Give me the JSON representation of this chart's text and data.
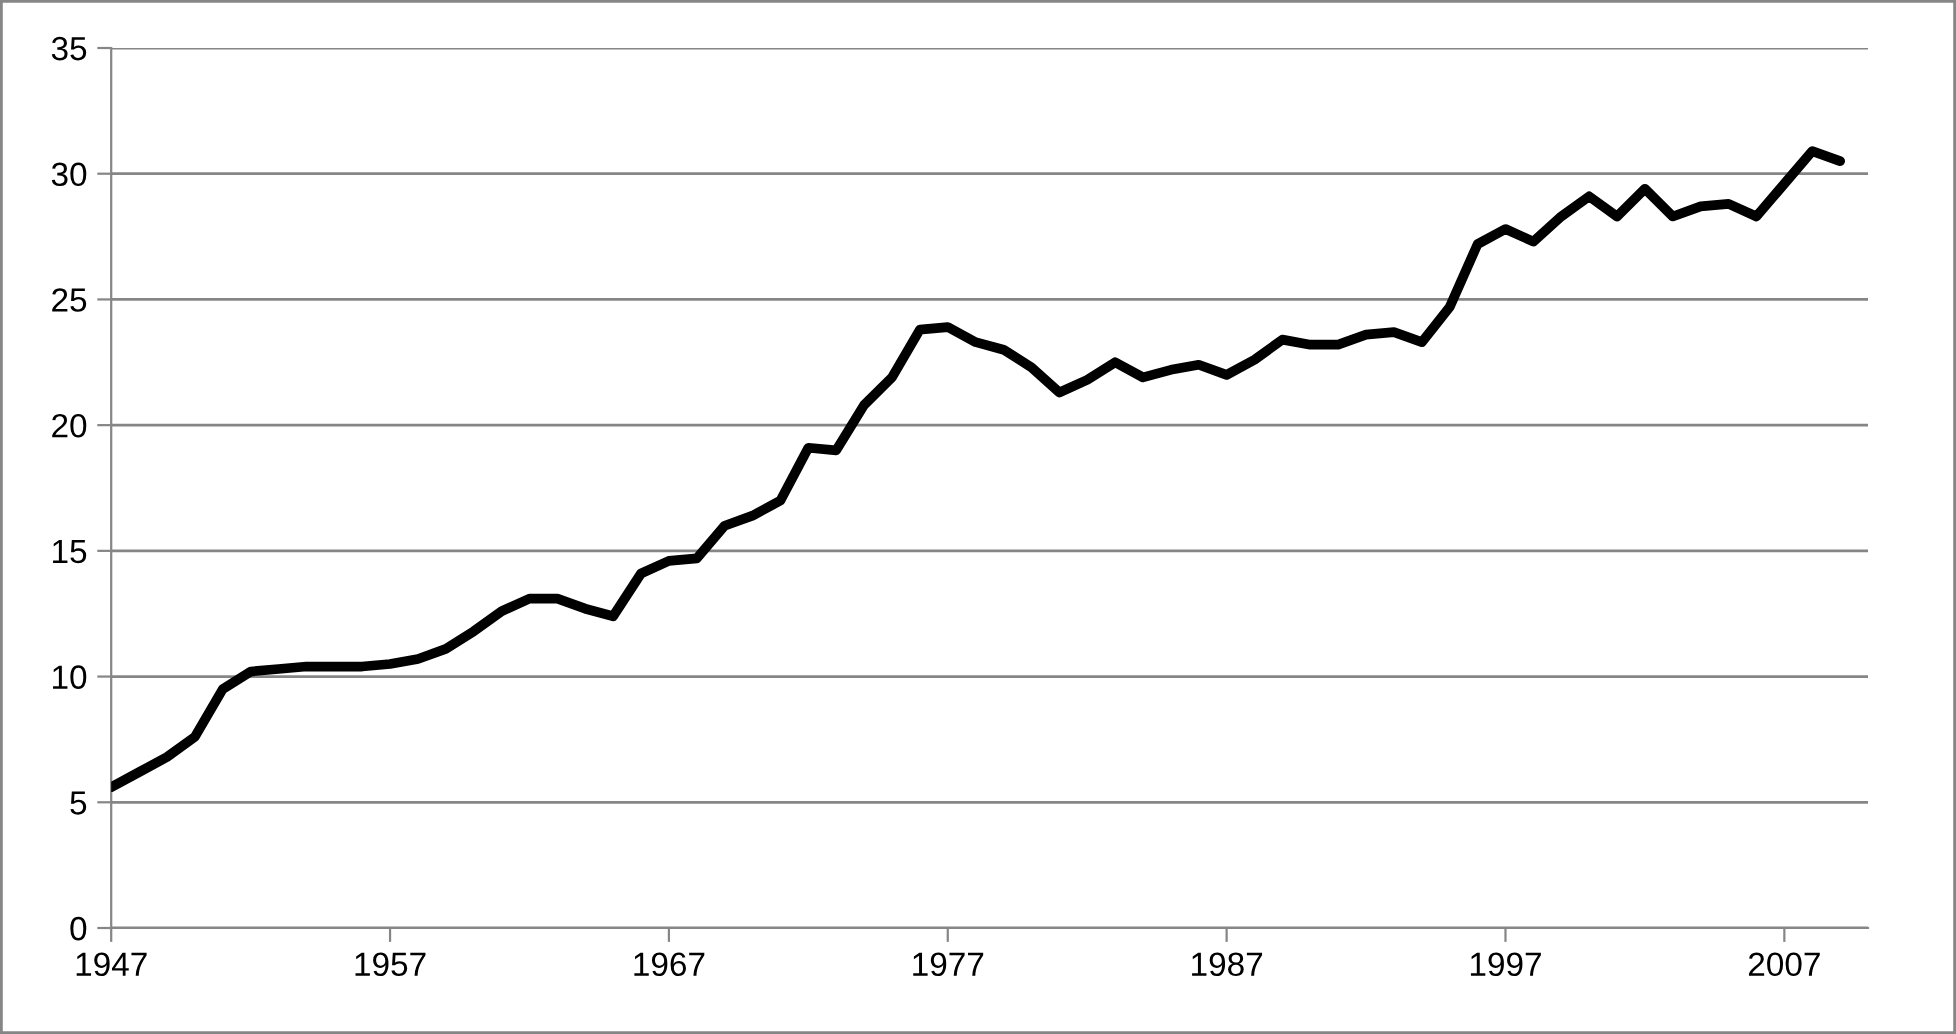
{
  "chart_data": {
    "type": "line",
    "x": [
      1947,
      1948,
      1949,
      1950,
      1951,
      1952,
      1953,
      1954,
      1955,
      1956,
      1957,
      1958,
      1959,
      1960,
      1961,
      1962,
      1963,
      1964,
      1965,
      1966,
      1967,
      1968,
      1969,
      1970,
      1971,
      1972,
      1973,
      1974,
      1975,
      1976,
      1977,
      1978,
      1979,
      1980,
      1981,
      1982,
      1983,
      1984,
      1985,
      1986,
      1987,
      1988,
      1989,
      1990,
      1991,
      1992,
      1993,
      1994,
      1995,
      1996,
      1997,
      1998,
      1999,
      2000,
      2001,
      2002,
      2003,
      2004,
      2005,
      2006,
      2007,
      2008,
      2009
    ],
    "series": [
      {
        "color": "#000000",
        "values": [
          5.6,
          6.2,
          6.8,
          7.6,
          9.5,
          10.2,
          10.3,
          10.4,
          10.4,
          10.4,
          10.5,
          10.7,
          11.1,
          11.8,
          12.6,
          13.1,
          13.1,
          12.7,
          12.4,
          14.1,
          14.6,
          14.7,
          16.0,
          16.4,
          17.0,
          19.1,
          19.0,
          20.8,
          21.9,
          23.8,
          23.9,
          23.3,
          23.0,
          22.3,
          21.3,
          21.8,
          22.5,
          21.9,
          22.2,
          22.4,
          22.0,
          22.6,
          23.4,
          23.2,
          23.2,
          23.6,
          23.7,
          23.3,
          24.7,
          27.2,
          27.8,
          27.3,
          28.3,
          29.1,
          28.3,
          29.4,
          28.3,
          28.7,
          28.8,
          28.3,
          29.6,
          30.9,
          30.5
        ]
      }
    ],
    "xlim": [
      1947,
      2010
    ],
    "xticks": [
      1947,
      1957,
      1967,
      1977,
      1987,
      1997,
      2007
    ],
    "ylim": [
      0,
      35
    ],
    "yticks": [
      0,
      5,
      10,
      15,
      20,
      25,
      30,
      35
    ],
    "grid": "y",
    "marker": "none",
    "line_style": "solid"
  }
}
